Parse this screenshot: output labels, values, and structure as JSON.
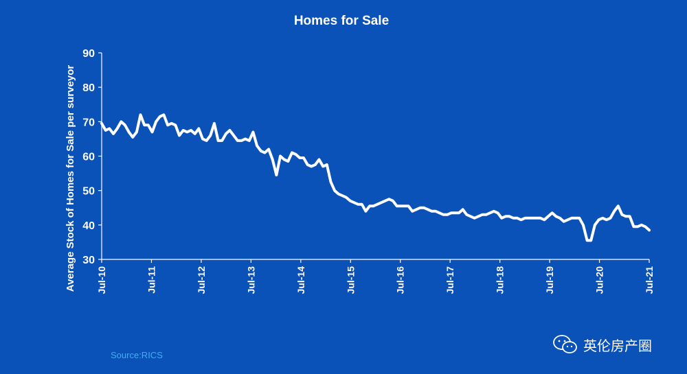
{
  "chart_data": {
    "type": "line",
    "title": "Homes for Sale",
    "ylabel": "Average Stock of Homes for Sale per surveyor",
    "xlabel": "",
    "ylim": [
      30,
      90
    ],
    "yticks": [
      30,
      40,
      50,
      60,
      70,
      80,
      90
    ],
    "x_tick_labels": [
      "Jul-10",
      "Jul-11",
      "Jul-12",
      "Jul-13",
      "Jul-14",
      "Jul-15",
      "Jul-16",
      "Jul-17",
      "Jul-18",
      "Jul-19",
      "Jul-20",
      "Jul-21"
    ],
    "x_start": "2010-07",
    "x_end": "2021-07",
    "grid": false,
    "line_color": "#ffffff",
    "series": [
      {
        "values": [
          69.5,
          67.5,
          68,
          66.5,
          68,
          70,
          69,
          67,
          65.5,
          67,
          72,
          69,
          69,
          67,
          70,
          71.5,
          72,
          69,
          69.5,
          69,
          66,
          67.5,
          67,
          67.5,
          66.5,
          68,
          65,
          64.5,
          66,
          69.5,
          64.5,
          64.5,
          66.5,
          67.5,
          66,
          64.5,
          64.5,
          65,
          64.5,
          67,
          63,
          61.5,
          61,
          62,
          59,
          54.5,
          60,
          59,
          58.5,
          61,
          60.5,
          59.5,
          59.5,
          57.5,
          57,
          57.5,
          59,
          57,
          57.5,
          52.5,
          50,
          49,
          48.5,
          48,
          47,
          46.5,
          46,
          46,
          44,
          45.5,
          45.5,
          46,
          46.5,
          47,
          47.5,
          47,
          45.5,
          45.5,
          45.5,
          45.5,
          44,
          44.5,
          45,
          45,
          44.5,
          44,
          44,
          43.5,
          43,
          43,
          43.5,
          43.5,
          43.5,
          44.5,
          43,
          42.5,
          42,
          42.5,
          43,
          43,
          43.5,
          44,
          43.5,
          42,
          42.5,
          42.5,
          42,
          42,
          41.5,
          42,
          42,
          42,
          42,
          42,
          41.5,
          42.5,
          43.5,
          42.5,
          42,
          41,
          41.5,
          42,
          42,
          42,
          40,
          35.5,
          35.5,
          40,
          41.5,
          42,
          41.5,
          42,
          44,
          45.5,
          43,
          42.5,
          42.5,
          39.5,
          39.5,
          40,
          39.5,
          38.5
        ]
      }
    ]
  },
  "source": "Source:RICS",
  "watermark": {
    "text": "英伦房产圈",
    "icon": "wechat-icon"
  },
  "colors": {
    "background": "#0a51b8",
    "source_text": "#3fb0f0"
  }
}
